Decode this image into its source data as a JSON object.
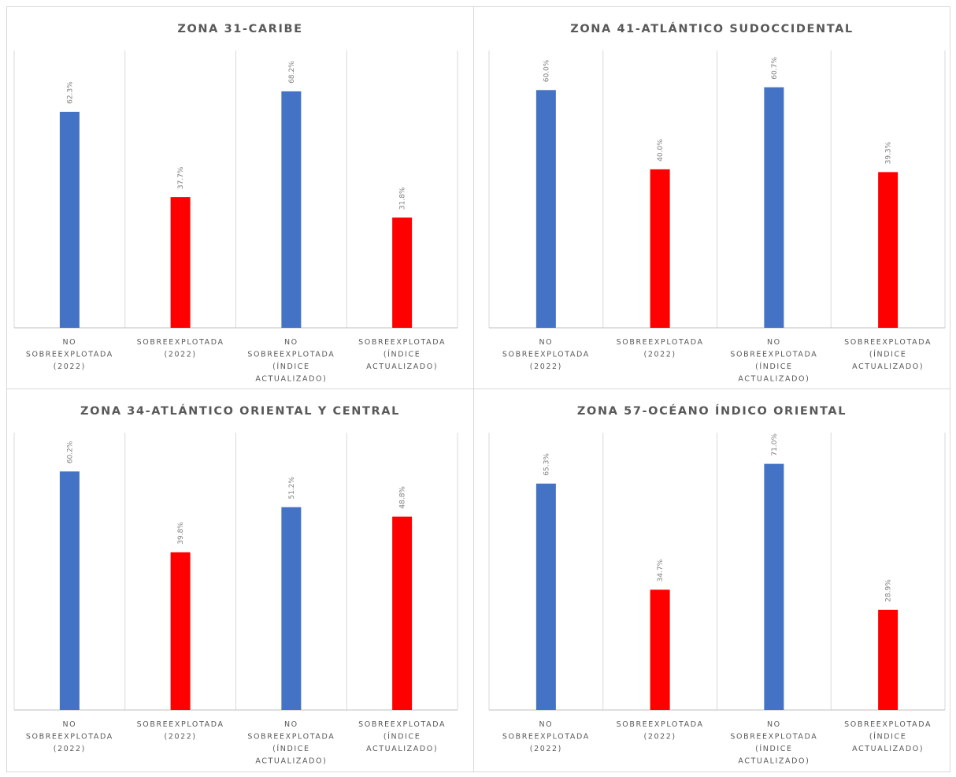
{
  "chart_data": [
    {
      "type": "bar",
      "title": "ZONA 31-CARIBE",
      "categories": [
        [
          "NO",
          "SOBREEXPLOTADA",
          "(2022)"
        ],
        [
          "SOBREEXPLOTADA",
          "(2022)"
        ],
        [
          "NO",
          "SOBREEXPLOTADA",
          "(ÍNDICE",
          "ACTUALIZADO)"
        ],
        [
          "SOBREEXPLOTADA",
          "(ÍNDICE",
          "ACTUALIZADO)"
        ]
      ],
      "values": [
        62.3,
        37.7,
        68.2,
        31.8
      ],
      "value_labels": [
        "62.3%",
        "37.7%",
        "68.2%",
        "31.8%"
      ],
      "colors": [
        "#4472C4",
        "#FF0000",
        "#4472C4",
        "#FF0000"
      ],
      "ylim": [
        0,
        80
      ],
      "grid": false
    },
    {
      "type": "bar",
      "title": "ZONA 41-ATLÁNTICO SUDOCCIDENTAL",
      "categories": [
        [
          "NO",
          "SOBREEXPLOTADA",
          "(2022)"
        ],
        [
          "SOBREEXPLOTADA",
          "(2022)"
        ],
        [
          "NO",
          "SOBREEXPLOTADA",
          "(ÍNDICE",
          "ACTUALIZADO)"
        ],
        [
          "SOBREEXPLOTADA",
          "(ÍNDICE",
          "ACTUALIZADO)"
        ]
      ],
      "values": [
        60.0,
        40.0,
        60.7,
        39.3
      ],
      "value_labels": [
        "60.0%",
        "40.0%",
        "60.7%",
        "39.3%"
      ],
      "colors": [
        "#4472C4",
        "#FF0000",
        "#4472C4",
        "#FF0000"
      ],
      "ylim": [
        0,
        70
      ],
      "grid": false
    },
    {
      "type": "bar",
      "title": "ZONA 34-ATLÁNTICO ORIENTAL Y CENTRAL",
      "categories": [
        [
          "NO",
          "SOBREEXPLOTADA",
          "(2022)"
        ],
        [
          "SOBREEXPLOTADA",
          "(2022)"
        ],
        [
          "NO",
          "SOBREEXPLOTADA",
          "(ÍNDICE",
          "ACTUALIZADO)"
        ],
        [
          "SOBREEXPLOTADA",
          "(ÍNDICE",
          "ACTUALIZADO)"
        ]
      ],
      "values": [
        60.2,
        39.8,
        51.2,
        48.8
      ],
      "value_labels": [
        "60.2%",
        "39.8%",
        "51.2%",
        "48.8%"
      ],
      "colors": [
        "#4472C4",
        "#FF0000",
        "#4472C4",
        "#FF0000"
      ],
      "ylim": [
        0,
        70
      ],
      "grid": false
    },
    {
      "type": "bar",
      "title": "ZONA 57-OCÉANO ÍNDICO ORIENTAL",
      "categories": [
        [
          "NO",
          "SOBREEXPLOTADA",
          "(2022)"
        ],
        [
          "SOBREEXPLOTADA",
          "(2022)"
        ],
        [
          "NO",
          "SOBREEXPLOTADA",
          "(ÍNDICE",
          "ACTUALIZADO)"
        ],
        [
          "SOBREEXPLOTADA",
          "(ÍNDICE",
          "ACTUALIZADO)"
        ]
      ],
      "values": [
        65.3,
        34.7,
        71.0,
        28.9
      ],
      "value_labels": [
        "65.3%",
        "34.7%",
        "71.0%",
        "28.9%"
      ],
      "colors": [
        "#4472C4",
        "#FF0000",
        "#4472C4",
        "#FF0000"
      ],
      "ylim": [
        0,
        80
      ],
      "grid": false
    }
  ]
}
